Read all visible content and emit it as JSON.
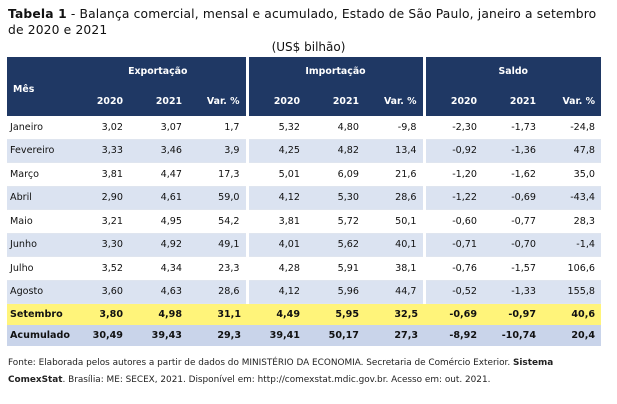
{
  "title": {
    "label": "Tabela 1",
    "text": " - Balança comercial, mensal e acumulado, Estado de São Paulo, janeiro a setembro de 2020 e 2021"
  },
  "unit": "(US$ bilhão)",
  "table": {
    "row_header": "Mês",
    "groups": [
      "Exportação",
      "Importação",
      "Saldo"
    ],
    "subheaders": [
      "2020",
      "2021",
      "Var. %",
      "2020",
      "2021",
      "Var. %",
      "2020",
      "2021",
      "Var. %"
    ],
    "rows": [
      {
        "month": "Janeiro",
        "values": [
          "3,02",
          "3,07",
          "1,7",
          "5,32",
          "4,80",
          "-9,8",
          "-2,30",
          "-1,73",
          "-24,8"
        ]
      },
      {
        "month": "Fevereiro",
        "values": [
          "3,33",
          "3,46",
          "3,9",
          "4,25",
          "4,82",
          "13,4",
          "-0,92",
          "-1,36",
          "47,8"
        ]
      },
      {
        "month": "Março",
        "values": [
          "3,81",
          "4,47",
          "17,3",
          "5,01",
          "6,09",
          "21,6",
          "-1,20",
          "-1,62",
          "35,0"
        ]
      },
      {
        "month": "Abril",
        "values": [
          "2,90",
          "4,61",
          "59,0",
          "4,12",
          "5,30",
          "28,6",
          "-1,22",
          "-0,69",
          "-43,4"
        ]
      },
      {
        "month": "Maio",
        "values": [
          "3,21",
          "4,95",
          "54,2",
          "3,81",
          "5,72",
          "50,1",
          "-0,60",
          "-0,77",
          "28,3"
        ]
      },
      {
        "month": "Junho",
        "values": [
          "3,30",
          "4,92",
          "49,1",
          "4,01",
          "5,62",
          "40,1",
          "-0,71",
          "-0,70",
          "-1,4"
        ]
      },
      {
        "month": "Julho",
        "values": [
          "3,52",
          "4,34",
          "23,3",
          "4,28",
          "5,91",
          "38,1",
          "-0,76",
          "-1,57",
          "106,6"
        ]
      },
      {
        "month": "Agosto",
        "values": [
          "3,60",
          "4,63",
          "28,6",
          "4,12",
          "5,96",
          "44,7",
          "-0,52",
          "-1,33",
          "155,8"
        ]
      }
    ],
    "highlight_row": {
      "month": "Setembro",
      "values": [
        "3,80",
        "4,98",
        "31,1",
        "4,49",
        "5,95",
        "32,5",
        "-0,69",
        "-0,97",
        "40,6"
      ]
    },
    "total_row": {
      "month": "Acumulado",
      "values": [
        "30,49",
        "39,43",
        "29,3",
        "39,41",
        "50,17",
        "27,3",
        "-8,92",
        "-10,74",
        "20,4"
      ]
    }
  },
  "source": {
    "part1": "Fonte: Elaborada pelos autores a partir de dados do MINISTÉRIO DA ECONOMIA. Secretaria de Comércio Exterior. ",
    "bold": "Sistema ComexStat",
    "part2": ". Brasília: ME: SECEX, 2021. Disponível em: http://comexstat.mdic.gov.br. Acesso em: out. 2021."
  },
  "colors": {
    "header_bg": "#1f3864",
    "alt_row_bg": "#dbe3f1",
    "highlight_bg": "#fff47a",
    "total_bg": "#c9d4ea"
  }
}
